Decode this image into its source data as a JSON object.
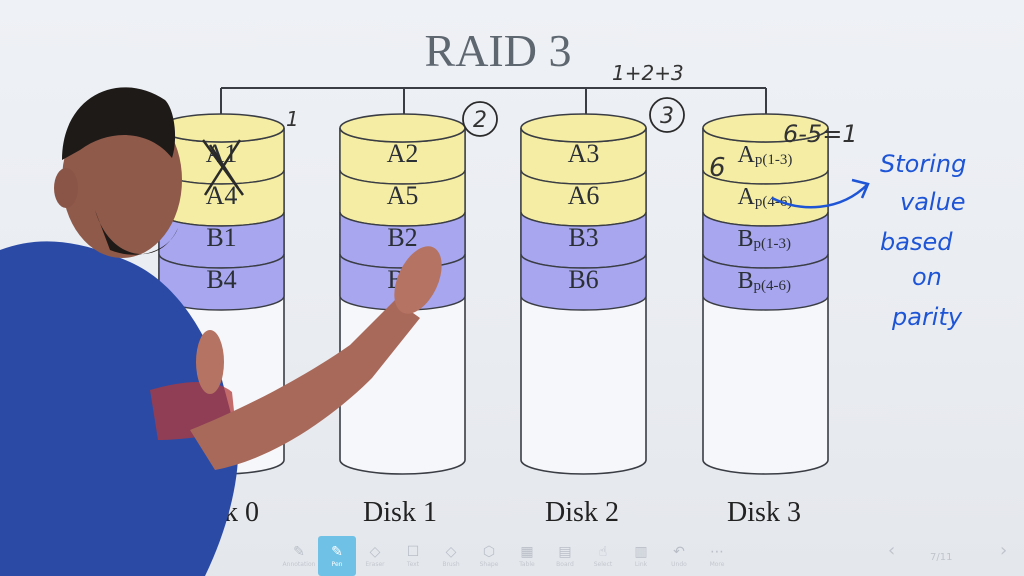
{
  "diagram": {
    "title": "RAID 3",
    "disks": [
      {
        "label": "Disk 0",
        "cells": [
          "A1",
          "A4",
          "B1",
          "B4"
        ]
      },
      {
        "label": "Disk 1",
        "cells": [
          "A2",
          "A5",
          "B2",
          "B5"
        ]
      },
      {
        "label": "Disk 2",
        "cells": [
          "A3",
          "A6",
          "B3",
          "B6"
        ]
      },
      {
        "label": "Disk 3",
        "cells": [
          "A",
          "A",
          "B",
          "B"
        ],
        "parity_subscripts": [
          "p(1-3)",
          "p(4-6)",
          "p(1-3)",
          "p(4-6)"
        ]
      }
    ],
    "colors": {
      "stripe_a": "#f4eda3",
      "stripe_b": "#a7a6ee",
      "disk_body": "#f6f7fa",
      "outline": "#3a3d44"
    }
  },
  "annotations": {
    "disk1_number": "2",
    "disk2_number": "3",
    "disk0_mark": "1",
    "sum_note": "1+2+3",
    "parity_calc": "6-5=1",
    "six": "6",
    "note_line1": "Storing",
    "note_line2": "value",
    "note_line3": "based",
    "note_line4": "on",
    "note_line5": "parity"
  },
  "toolbar": {
    "tools": [
      {
        "icon": "✎",
        "label": "Annotation"
      },
      {
        "icon": "✎",
        "label": "Pen"
      },
      {
        "icon": "◇",
        "label": "Eraser"
      },
      {
        "icon": "☐",
        "label": "Text"
      },
      {
        "icon": "◇",
        "label": "Brush"
      },
      {
        "icon": "⬡",
        "label": "Shape"
      },
      {
        "icon": "▦",
        "label": "Table"
      },
      {
        "icon": "▤",
        "label": "Board"
      },
      {
        "icon": "☝",
        "label": "Select"
      },
      {
        "icon": "▥",
        "label": "Link"
      },
      {
        "icon": "↶",
        "label": "Undo"
      },
      {
        "icon": "⋯",
        "label": "More"
      }
    ],
    "page_indicator": "7/11"
  }
}
